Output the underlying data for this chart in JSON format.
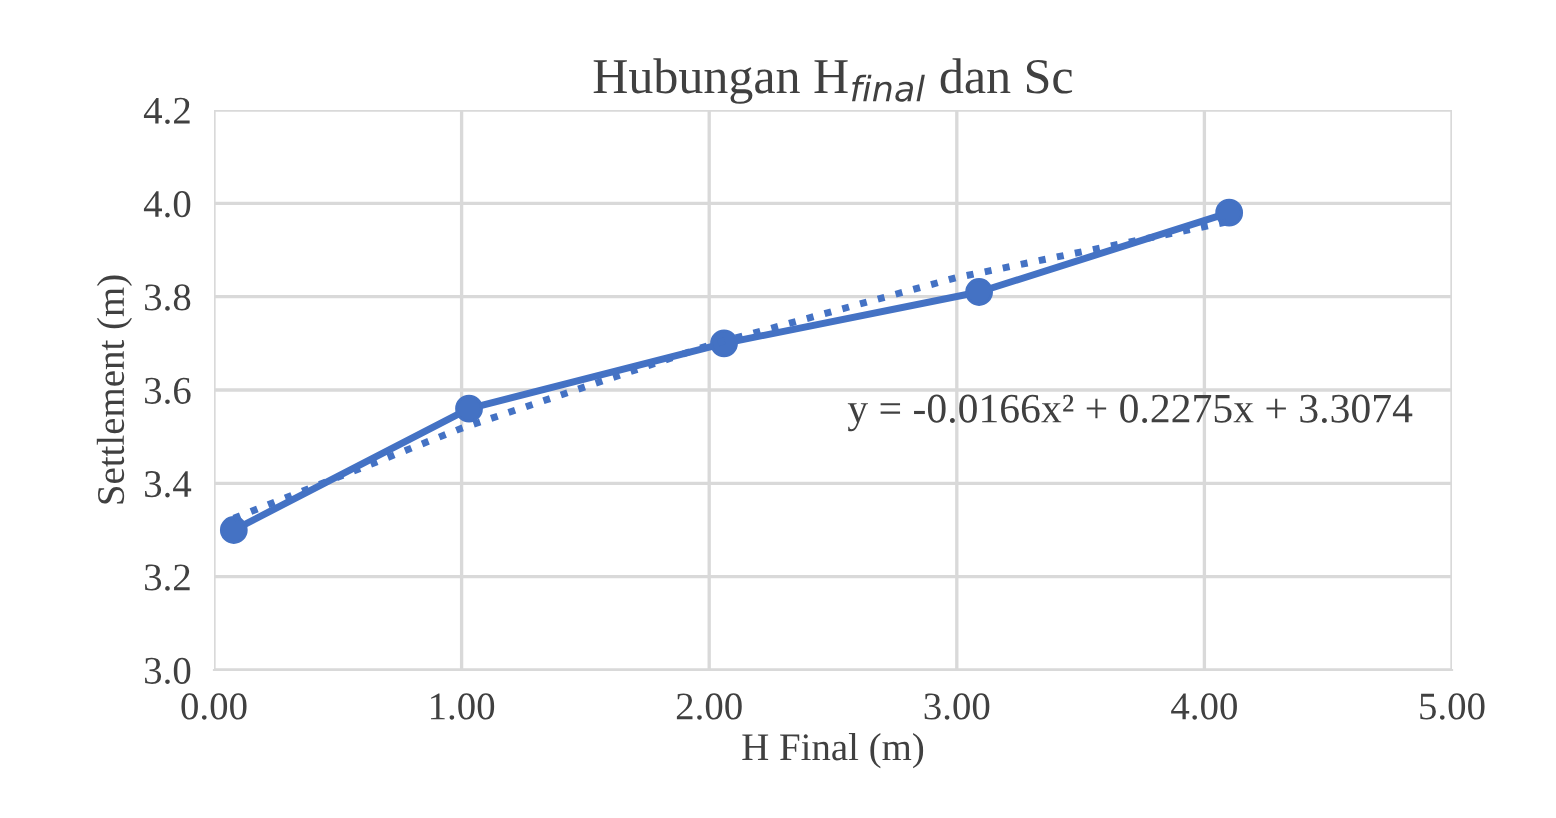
{
  "chart_data": {
    "type": "line",
    "title": "Hubungan H$_{final}$ dan Sc",
    "xlabel": "H Final (m)",
    "ylabel": "Settlement (m)",
    "xlim": [
      0,
      5
    ],
    "xticks": [
      {
        "value": 0,
        "label": "0.00"
      },
      {
        "value": 1,
        "label": "1.00"
      },
      {
        "value": 2,
        "label": "2.00"
      },
      {
        "value": 3,
        "label": "3.00"
      },
      {
        "value": 4,
        "label": "4.00"
      },
      {
        "value": 5,
        "label": "5.00"
      }
    ],
    "ylim": [
      3.0,
      4.2
    ],
    "yticks": [
      {
        "value": 3,
        "label": "3.0"
      },
      3.2,
      3.4,
      3.6,
      3.8,
      {
        "value": 4,
        "label": "4.0"
      },
      4.2
    ],
    "grid": true,
    "annotations": [
      "y = -0.0166x² + 0.2275x + 3.3074"
    ],
    "series": [
      {
        "color": "#4472c4",
        "marker": "circle",
        "line_style": "solid",
        "x": [
          0.08,
          1.03,
          2.06,
          3.09,
          4.1
        ],
        "values": [
          3.3,
          3.56,
          3.7,
          3.81,
          3.98
        ]
      },
      {
        "color": "#4472c4",
        "marker": "none",
        "line_style": "dotted",
        "x": [
          0.08,
          1.0,
          2.0,
          3.0,
          4.1
        ],
        "values": [
          3.325,
          3.518,
          3.696,
          3.841,
          3.961
        ]
      }
    ]
  }
}
